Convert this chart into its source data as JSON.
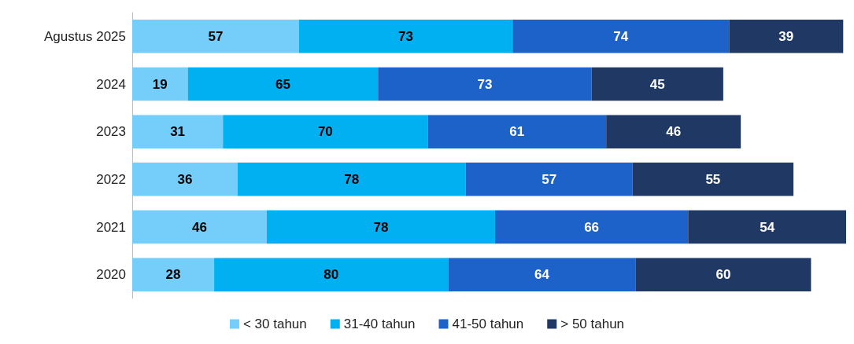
{
  "chart_data": {
    "type": "bar",
    "orientation": "horizontal",
    "stacked": true,
    "data_labels": true,
    "legend": "bottom",
    "grid": false,
    "categories": [
      "Agustus 2025",
      "2024",
      "2023",
      "2022",
      "2021",
      "2020"
    ],
    "series": [
      {
        "name": "< 30 tahun",
        "color": "#75cdf9",
        "values": [
          57,
          19,
          31,
          36,
          46,
          28
        ]
      },
      {
        "name": "31-40 tahun",
        "color": "#00b0f0",
        "values": [
          73,
          65,
          70,
          78,
          78,
          80
        ]
      },
      {
        "name": "41-50 tahun",
        "color": "#1c62c8",
        "values": [
          74,
          73,
          61,
          57,
          66,
          64
        ]
      },
      {
        "name": "> 50 tahun",
        "color": "#203864",
        "values": [
          39,
          45,
          46,
          55,
          54,
          60
        ]
      }
    ]
  }
}
